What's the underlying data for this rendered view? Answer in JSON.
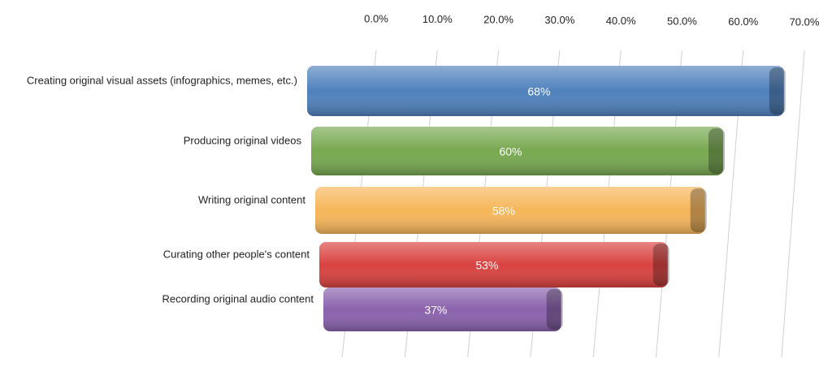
{
  "chart_data": {
    "type": "bar",
    "orientation": "horizontal",
    "categories": [
      "Creating original visual assets (infographics, memes, etc.)",
      "Producing original videos",
      "Writing original content",
      "Curating other people's content",
      "Recording original audio content"
    ],
    "values": [
      68,
      60,
      58,
      53,
      37
    ],
    "value_labels": [
      "68%",
      "60%",
      "58%",
      "53%",
      "37%"
    ],
    "colors": [
      "#4f81bd",
      "#77a84f",
      "#f6b65a",
      "#d9423f",
      "#8a62ad"
    ],
    "xlim": [
      0,
      70
    ],
    "xticks": [
      {
        "value": 0,
        "label": "0.0%"
      },
      {
        "value": 10,
        "label": "10.0%"
      },
      {
        "value": 20,
        "label": "20.0%"
      },
      {
        "value": 30,
        "label": "30.0%"
      },
      {
        "value": 40,
        "label": "40.0%"
      },
      {
        "value": 50,
        "label": "50.0%"
      },
      {
        "value": 60,
        "label": "60.0%"
      },
      {
        "value": 70,
        "label": "70.0%"
      }
    ],
    "grid": true
  }
}
